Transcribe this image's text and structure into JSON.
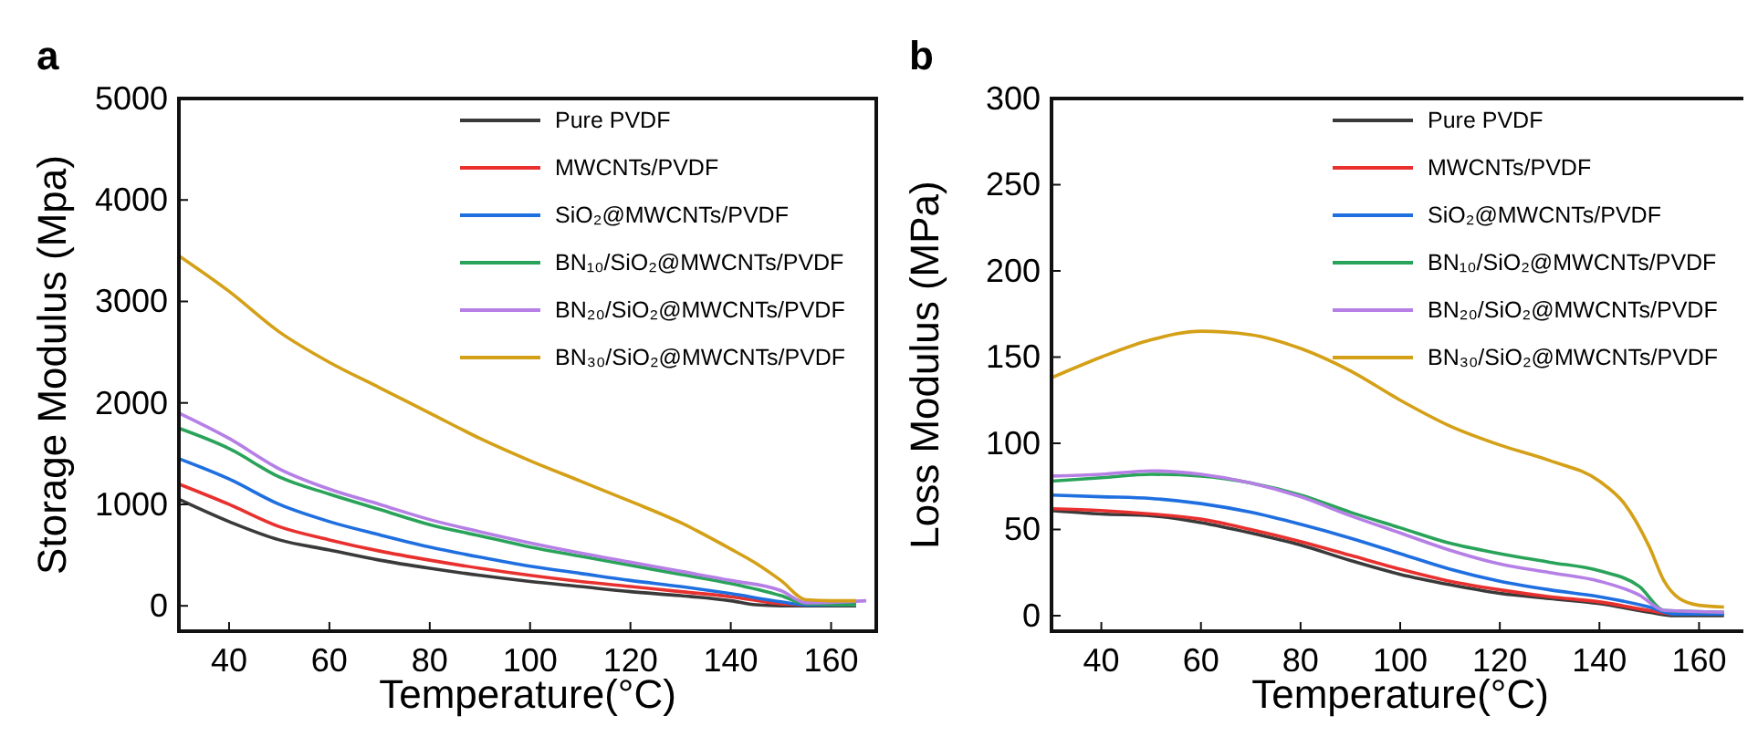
{
  "chart_data": [
    {
      "type": "line",
      "title": "a",
      "xlabel": "Temperature(°C)",
      "ylabel": "Storage Modulus (Mpa)",
      "xlim": [
        30,
        169
      ],
      "ylim": [
        -250,
        5000
      ],
      "xticks": [
        40,
        60,
        80,
        100,
        120,
        140,
        160
      ],
      "yticks": [
        0,
        1000,
        2000,
        3000,
        4000,
        5000
      ],
      "legend": "top right",
      "grid": false,
      "series": [
        {
          "name": "Pure PVDF",
          "color": "#3a3a3a",
          "x": [
            30,
            40,
            50,
            60,
            70,
            80,
            90,
            100,
            110,
            120,
            130,
            140,
            145,
            150,
            165
          ],
          "values": [
            1050,
            830,
            650,
            550,
            450,
            370,
            300,
            240,
            190,
            140,
            100,
            50,
            10,
            0,
            0
          ]
        },
        {
          "name": "MWCNTs/PVDF",
          "color": "#e8312f",
          "x": [
            30,
            40,
            50,
            60,
            70,
            80,
            90,
            100,
            110,
            120,
            130,
            140,
            150,
            155,
            165
          ],
          "values": [
            1200,
            1000,
            780,
            650,
            540,
            450,
            370,
            300,
            240,
            190,
            140,
            90,
            20,
            10,
            10
          ]
        },
        {
          "name": "SiO₂@MWCNTs/PVDF",
          "color": "#1f6fe0",
          "x": [
            30,
            40,
            50,
            60,
            70,
            80,
            90,
            100,
            110,
            120,
            130,
            140,
            150,
            155,
            165
          ],
          "values": [
            1450,
            1250,
            1000,
            830,
            700,
            580,
            480,
            390,
            320,
            250,
            190,
            120,
            40,
            10,
            10
          ]
        },
        {
          "name": "BN₁₀/SiO₂@MWCNTs/PVDF",
          "color": "#2aa35a",
          "x": [
            30,
            40,
            50,
            60,
            70,
            80,
            90,
            100,
            110,
            120,
            130,
            140,
            150,
            155,
            165
          ],
          "values": [
            1750,
            1550,
            1270,
            1100,
            950,
            800,
            690,
            580,
            490,
            400,
            310,
            220,
            100,
            20,
            10
          ]
        },
        {
          "name": "BN₂₀/SiO₂@MWCNTs/PVDF",
          "color": "#b57fe6",
          "x": [
            30,
            40,
            50,
            60,
            70,
            80,
            90,
            100,
            110,
            120,
            130,
            140,
            150,
            155,
            167
          ],
          "values": [
            1900,
            1650,
            1350,
            1150,
            1000,
            850,
            730,
            620,
            520,
            430,
            340,
            250,
            150,
            30,
            50
          ]
        },
        {
          "name": "BN₃₀/SiO₂@MWCNTs/PVDF",
          "color": "#d4a017",
          "x": [
            30,
            40,
            50,
            60,
            70,
            80,
            90,
            100,
            110,
            120,
            130,
            140,
            145,
            150,
            155,
            160,
            165
          ],
          "values": [
            3450,
            3100,
            2700,
            2400,
            2150,
            1900,
            1650,
            1430,
            1230,
            1030,
            820,
            560,
            420,
            250,
            60,
            50,
            50
          ]
        }
      ]
    },
    {
      "type": "line",
      "title": "b",
      "xlabel": "Temperature(°C)",
      "ylabel": "Loss Modulus (MPa)",
      "xlim": [
        30,
        170
      ],
      "ylim": [
        -9,
        300
      ],
      "xticks": [
        40,
        60,
        80,
        100,
        120,
        140,
        160
      ],
      "yticks": [
        0,
        50,
        100,
        150,
        200,
        250,
        300
      ],
      "legend": "top right",
      "grid": false,
      "series": [
        {
          "name": "Pure PVDF",
          "color": "#3a3a3a",
          "x": [
            30,
            40,
            50,
            60,
            70,
            80,
            90,
            100,
            110,
            120,
            130,
            140,
            150,
            155,
            165
          ],
          "values": [
            61,
            59,
            58,
            54,
            48,
            41,
            32,
            24,
            18,
            13,
            10,
            7,
            2,
            0,
            0
          ]
        },
        {
          "name": "MWCNTs/PVDF",
          "color": "#e8312f",
          "x": [
            30,
            40,
            50,
            60,
            70,
            80,
            90,
            100,
            110,
            120,
            130,
            140,
            150,
            155,
            165
          ],
          "values": [
            62,
            61,
            59,
            56,
            50,
            43,
            35,
            27,
            20,
            15,
            11,
            8,
            3,
            1,
            1
          ]
        },
        {
          "name": "SiO₂@MWCNTs/PVDF",
          "color": "#1f6fe0",
          "x": [
            30,
            40,
            50,
            60,
            70,
            80,
            90,
            100,
            110,
            120,
            130,
            140,
            150,
            155,
            165
          ],
          "values": [
            70,
            69,
            68,
            65,
            60,
            53,
            45,
            36,
            27,
            20,
            15,
            11,
            5,
            1,
            1
          ]
        },
        {
          "name": "BN₁₀/SiO₂@MWCNTs/PVDF",
          "color": "#2aa35a",
          "x": [
            30,
            40,
            50,
            60,
            70,
            80,
            90,
            100,
            110,
            120,
            130,
            140,
            148,
            153,
            165
          ],
          "values": [
            78,
            80,
            82,
            81,
            77,
            70,
            60,
            51,
            42,
            36,
            31,
            26,
            17,
            3,
            2
          ]
        },
        {
          "name": "BN₂₀/SiO₂@MWCNTs/PVDF",
          "color": "#b57fe6",
          "x": [
            30,
            40,
            50,
            60,
            70,
            80,
            90,
            100,
            110,
            120,
            130,
            140,
            148,
            153,
            165
          ],
          "values": [
            81,
            82,
            84,
            82,
            77,
            69,
            58,
            48,
            38,
            30,
            25,
            20,
            12,
            3,
            2
          ]
        },
        {
          "name": "BN₃₀/SiO₂@MWCNTs/PVDF",
          "color": "#d4a017",
          "x": [
            30,
            40,
            50,
            60,
            70,
            80,
            90,
            100,
            110,
            120,
            130,
            140,
            145,
            150,
            153,
            156,
            160,
            165
          ],
          "values": [
            138,
            150,
            160,
            165,
            163,
            155,
            142,
            125,
            110,
            99,
            90,
            78,
            65,
            40,
            20,
            10,
            6,
            5
          ]
        }
      ]
    }
  ]
}
